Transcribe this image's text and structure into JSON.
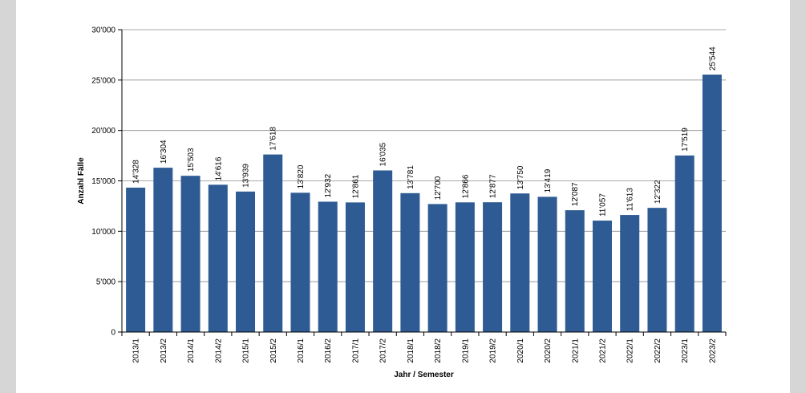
{
  "chart_data": {
    "type": "bar",
    "xlabel": "Jahr / Semester",
    "ylabel": "Anzahl Fälle",
    "ylim": [
      0,
      30000
    ],
    "yticks": [
      0,
      5000,
      10000,
      15000,
      20000,
      25000,
      30000
    ],
    "ytick_labels": [
      "0",
      "5'000",
      "10'000",
      "15'000",
      "20'000",
      "25'000",
      "30'000"
    ],
    "grid": true,
    "bar_color": "#2e5b94",
    "categories": [
      "2013/1",
      "2013/2",
      "2014/1",
      "2014/2",
      "2015/1",
      "2015/2",
      "2016/1",
      "2016/2",
      "2017/1",
      "2017/2",
      "2018/1",
      "2018/2",
      "2019/1",
      "2019/2",
      "2020/1",
      "2020/2",
      "2021/1",
      "2021/2",
      "2022/1",
      "2022/2",
      "2023/1",
      "2023/2"
    ],
    "values": [
      14328,
      16304,
      15503,
      14616,
      13939,
      17618,
      13820,
      12932,
      12861,
      16035,
      13781,
      12700,
      12866,
      12877,
      13750,
      13419,
      12087,
      11057,
      11613,
      12322,
      17519,
      25544
    ],
    "value_labels": [
      "14'328",
      "16'304",
      "15'503",
      "14'616",
      "13'939",
      "17'618",
      "13'820",
      "12'932",
      "12'861",
      "16'035",
      "13'781",
      "12'700",
      "12'866",
      "12'877",
      "13'750",
      "13'419",
      "12'087",
      "11'057",
      "11'613",
      "12'322",
      "17'519",
      "25'544"
    ]
  }
}
